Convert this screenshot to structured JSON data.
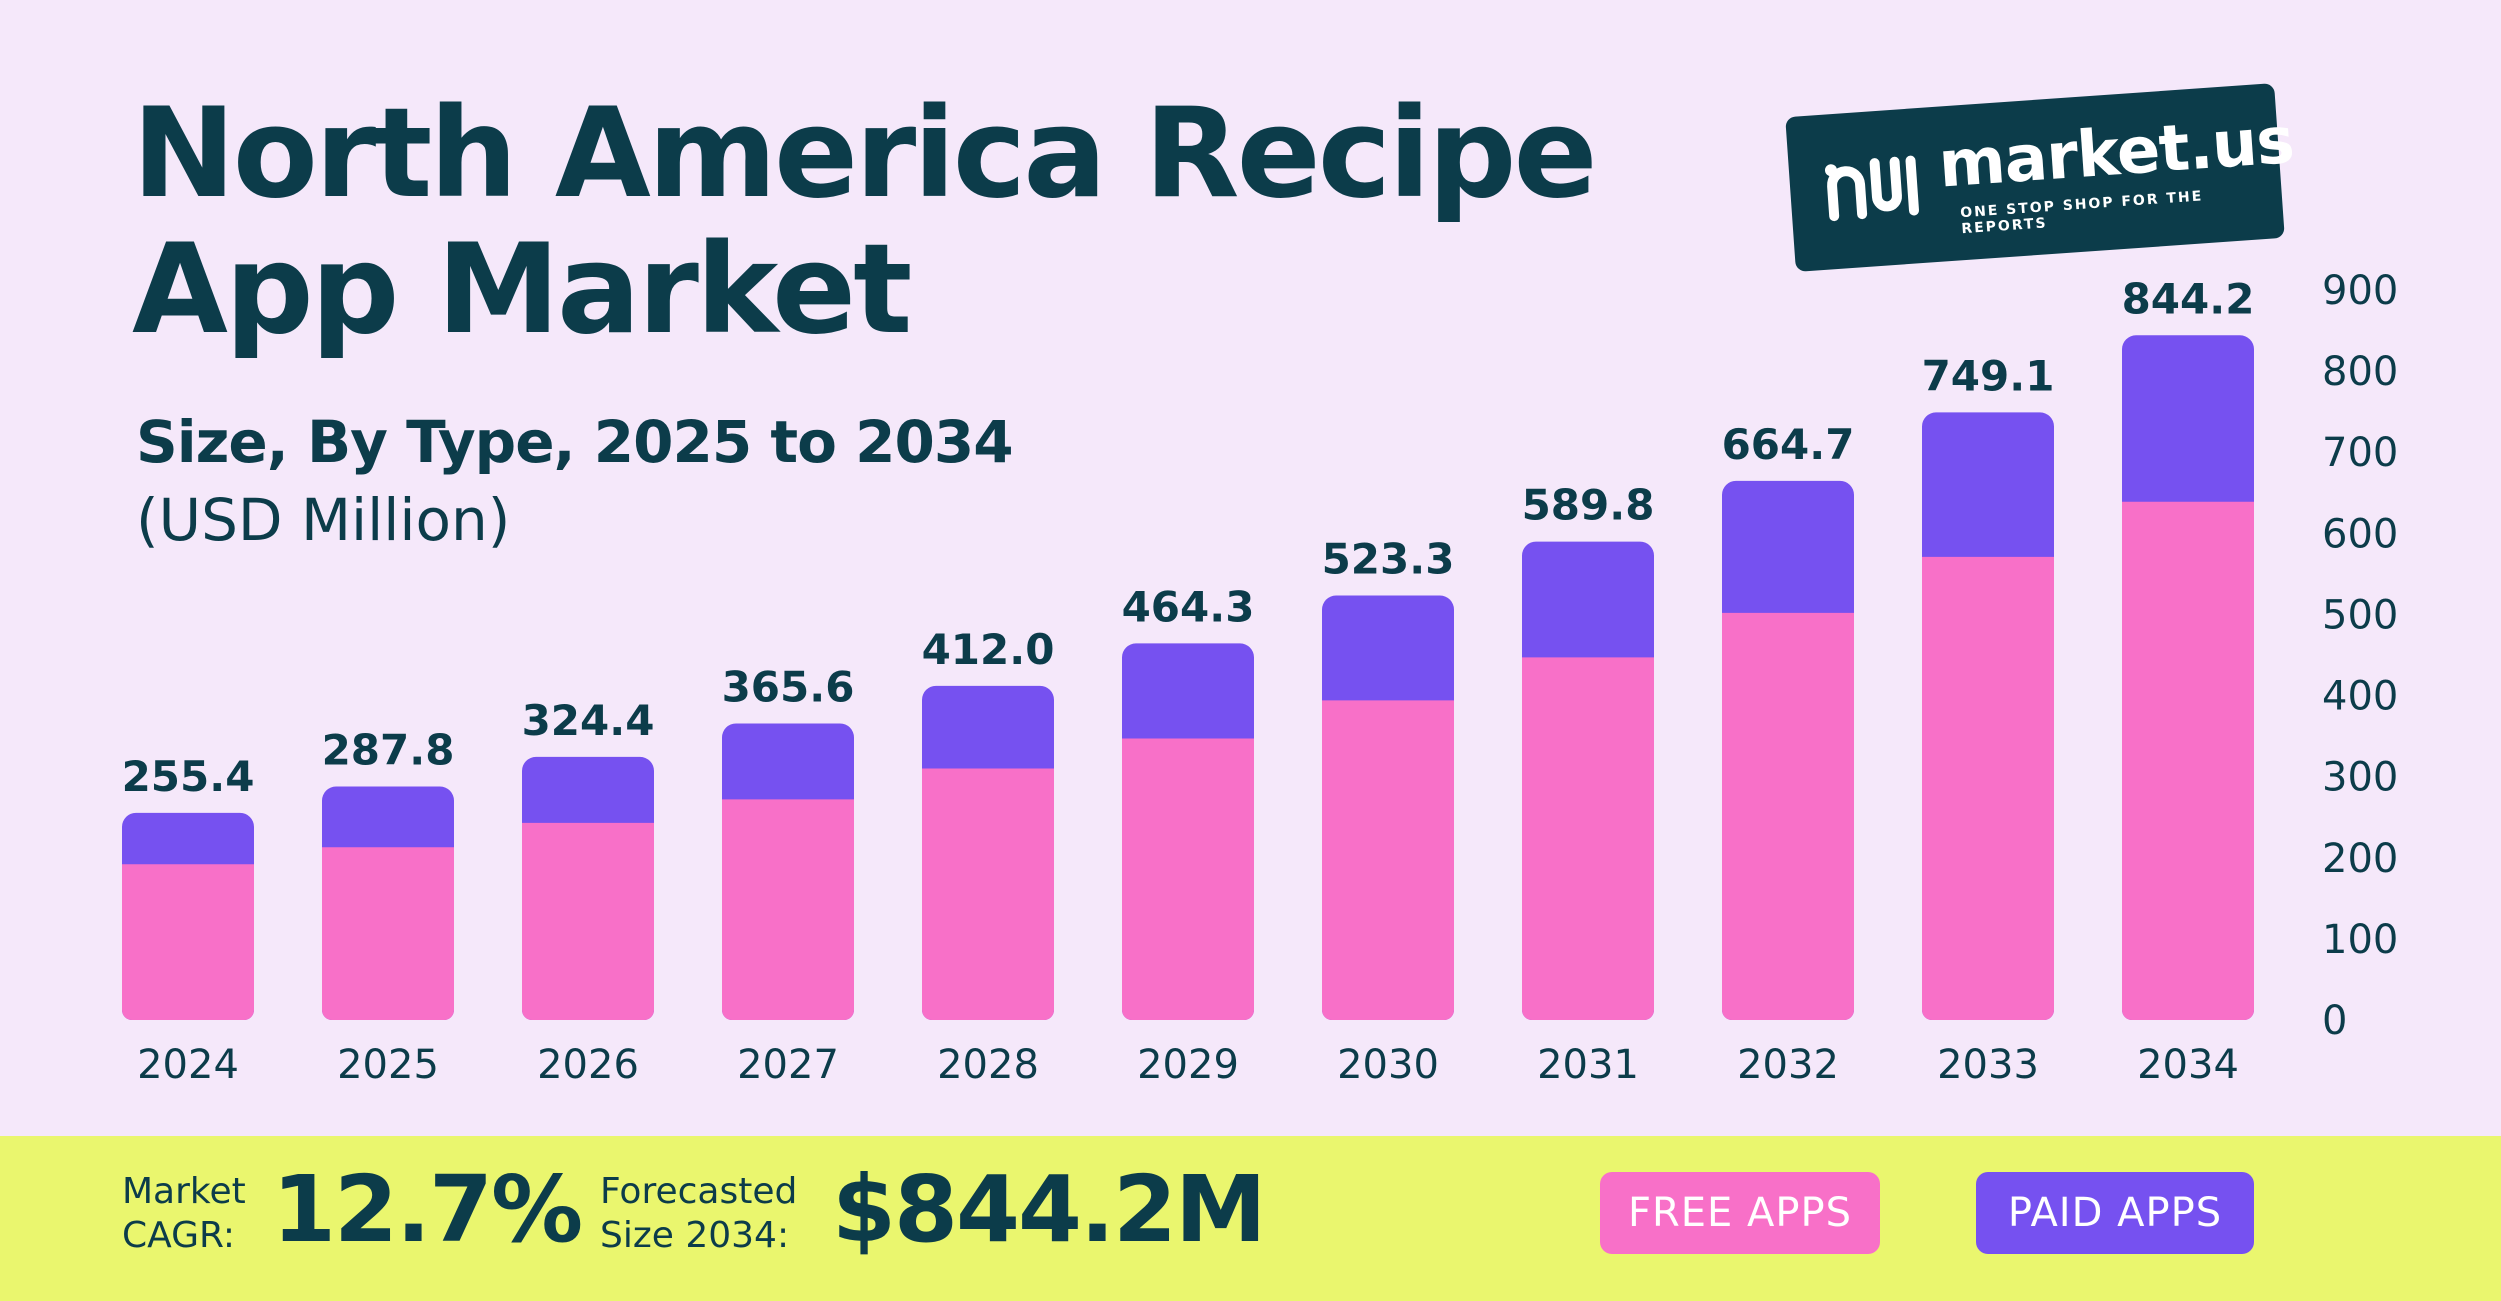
{
  "header": {
    "title_line1": "North America Recipe",
    "title_line2": "App Market",
    "subtitle": "Size, By Type, 2025 to 2034",
    "unit": "(USD Million)"
  },
  "logo": {
    "name": "market.us",
    "tagline": "ONE STOP SHOP FOR THE REPORTS"
  },
  "colors": {
    "background": "#F5E8FA",
    "free_apps": "#F870C8",
    "paid_apps": "#7651F0",
    "text": "#0C3C4A",
    "footer": "#EAF66E"
  },
  "chart_data": {
    "type": "bar",
    "stacked": true,
    "categories": [
      "2024",
      "2025",
      "2026",
      "2027",
      "2028",
      "2029",
      "2030",
      "2031",
      "2032",
      "2033",
      "2034"
    ],
    "totals": [
      "255.4",
      "287.8",
      "324.4",
      "365.6",
      "412.0",
      "464.3",
      "523.3",
      "589.8",
      "664.7",
      "749.1",
      "844.2"
    ],
    "series": [
      {
        "name": "FREE APPS",
        "values": [
          192,
          213,
          243,
          272,
          310,
          347,
          394,
          447,
          502,
          571,
          639
        ]
      },
      {
        "name": "PAID APPS",
        "values": [
          63.4,
          74.8,
          81.4,
          93.6,
          102.0,
          117.3,
          129.3,
          142.8,
          162.7,
          178.1,
          205.2
        ]
      }
    ],
    "y_ticks": [
      "0",
      "100",
      "200",
      "300",
      "400",
      "500",
      "600",
      "700",
      "800",
      "900"
    ],
    "ylim": [
      0,
      900
    ],
    "y_axis_side": "right",
    "grid": false
  },
  "footer": {
    "cagr_label_line1": "Market",
    "cagr_label_line2": "CAGR:",
    "cagr_value": "12.7%",
    "size_label_line1": "Forecasted",
    "size_label_line2": "Size 2034:",
    "size_value": "$844.2M"
  },
  "legend": {
    "free": "FREE APPS",
    "paid": "PAID APPS"
  }
}
